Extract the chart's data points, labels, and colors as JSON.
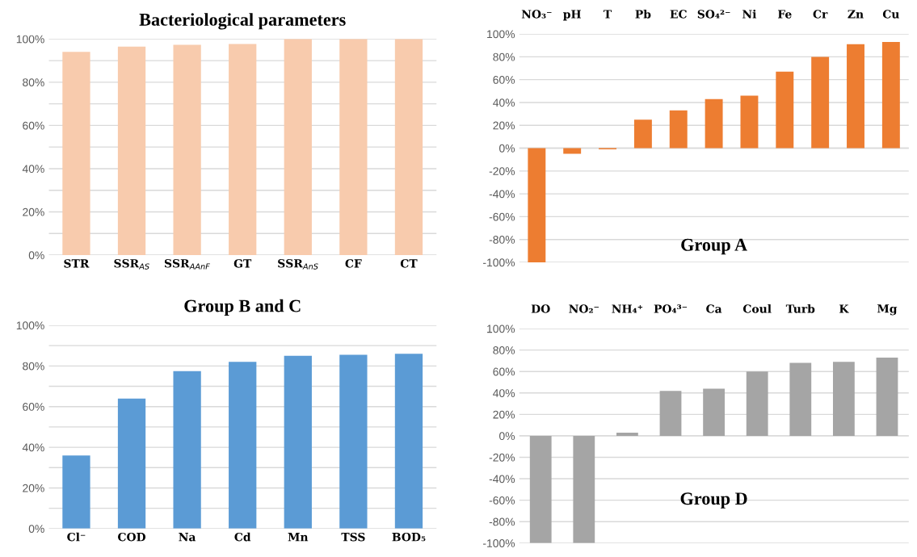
{
  "chart_data": [
    {
      "type": "bar",
      "title": "Bacteriological parameters",
      "categories": [
        "STR",
        "SSR$_{AS}$",
        "SSR$_{AAnF}$",
        "GT",
        "SSR$_{AnS}$",
        "CF",
        "CT"
      ],
      "values": [
        94,
        96.5,
        97.3,
        97.7,
        100,
        100,
        100
      ],
      "color": "#f8cbad",
      "ylim": [
        0,
        100
      ],
      "yticks": [
        {
          "value": 0,
          "label": "0%"
        },
        {
          "value": 10,
          "label": null
        },
        {
          "value": 20,
          "label": "20%"
        },
        {
          "value": 30,
          "label": null
        },
        {
          "value": 40,
          "label": "40%"
        },
        {
          "value": 50,
          "label": null
        },
        {
          "value": 60,
          "label": "60%"
        },
        {
          "value": 70,
          "label": null
        },
        {
          "value": 80,
          "label": "80%"
        },
        {
          "value": 90,
          "label": null
        },
        {
          "value": 100,
          "label": "100%"
        }
      ],
      "grid": "y"
    },
    {
      "type": "bar",
      "title": "Group A",
      "categories": [
        "NO₃⁻",
        "pH",
        "T",
        "Pb",
        "EC",
        "SO₄²⁻",
        "Ni",
        "Fe",
        "Cr",
        "Zn",
        "Cu"
      ],
      "values": [
        -100,
        -5,
        -1,
        25,
        33,
        43,
        46,
        67,
        80,
        91,
        93
      ],
      "color": "#ed7d31",
      "ylim": [
        -100,
        100
      ],
      "yticks": [
        {
          "value": -100,
          "label": "-100%"
        },
        {
          "value": -80,
          "label": "-80%"
        },
        {
          "value": -60,
          "label": "-60%"
        },
        {
          "value": -40,
          "label": "-40%"
        },
        {
          "value": -20,
          "label": "-20%"
        },
        {
          "value": 0,
          "label": "0%"
        },
        {
          "value": 20,
          "label": "20%"
        },
        {
          "value": 40,
          "label": "40%"
        },
        {
          "value": 60,
          "label": "60%"
        },
        {
          "value": 80,
          "label": "80%"
        },
        {
          "value": 100,
          "label": "100%"
        }
      ],
      "grid": "y"
    },
    {
      "type": "bar",
      "title": "Group B and C",
      "categories": [
        "Cl⁻",
        "COD",
        "Na",
        "Cd",
        "Mn",
        "TSS",
        "BOD₅"
      ],
      "values": [
        36,
        64,
        77.5,
        82,
        85,
        85.5,
        86
      ],
      "color": "#5b9bd5",
      "ylim": [
        0,
        100
      ],
      "yticks": [
        {
          "value": 0,
          "label": "0%"
        },
        {
          "value": 10,
          "label": null
        },
        {
          "value": 20,
          "label": "20%"
        },
        {
          "value": 30,
          "label": null
        },
        {
          "value": 40,
          "label": "40%"
        },
        {
          "value": 50,
          "label": null
        },
        {
          "value": 60,
          "label": "60%"
        },
        {
          "value": 70,
          "label": null
        },
        {
          "value": 80,
          "label": "80%"
        },
        {
          "value": 90,
          "label": null
        },
        {
          "value": 100,
          "label": "100%"
        }
      ],
      "grid": "y"
    },
    {
      "type": "bar",
      "title": "Group D",
      "categories": [
        "DO",
        "NO₂⁻",
        "NH₄⁺",
        "PO₄³⁻",
        "Ca",
        "Coul",
        "Turb",
        "K",
        "Mg"
      ],
      "values": [
        -100,
        -100,
        3,
        42,
        44,
        60,
        68,
        69,
        73
      ],
      "color": "#a5a5a5",
      "ylim": [
        -100,
        100
      ],
      "yticks": [
        {
          "value": -100,
          "label": "-100%"
        },
        {
          "value": -80,
          "label": "-80%"
        },
        {
          "value": -60,
          "label": "-60%"
        },
        {
          "value": -40,
          "label": "-40%"
        },
        {
          "value": -20,
          "label": "-20%"
        },
        {
          "value": 0,
          "label": "0%"
        },
        {
          "value": 20,
          "label": "20%"
        },
        {
          "value": 40,
          "label": "40%"
        },
        {
          "value": 60,
          "label": "60%"
        },
        {
          "value": 80,
          "label": "80%"
        },
        {
          "value": 100,
          "label": "100%"
        }
      ],
      "grid": "y"
    }
  ]
}
